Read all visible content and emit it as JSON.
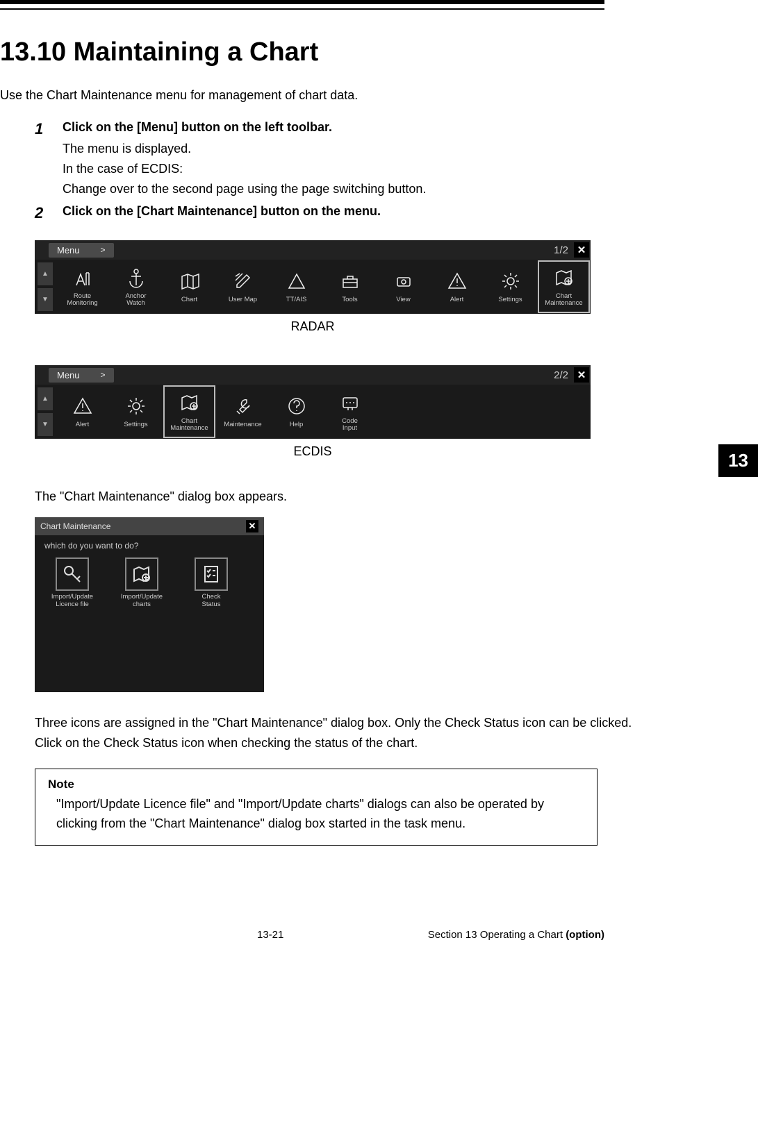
{
  "heading": "13.10 Maintaining a Chart",
  "intro": "Use the Chart Maintenance menu for management of chart data.",
  "steps": [
    {
      "num": "1",
      "title": "Click on the [Menu] button on the left toolbar.",
      "lines": [
        "The menu is displayed.",
        "In the case of ECDIS:",
        "Change over to the second page using the page switching button."
      ]
    },
    {
      "num": "2",
      "title": "Click on the [Chart Maintenance] button on the menu.",
      "lines": []
    }
  ],
  "menubar_radar": {
    "menu_label": "Menu",
    "page": "1/2",
    "items": [
      {
        "id": "route-monitoring",
        "label": "Route\nMonitoring",
        "icon": "route"
      },
      {
        "id": "anchor-watch",
        "label": "Anchor\nWatch",
        "icon": "anchor"
      },
      {
        "id": "chart",
        "label": "Chart",
        "icon": "map"
      },
      {
        "id": "user-map",
        "label": "User Map",
        "icon": "pencil"
      },
      {
        "id": "tt-ais",
        "label": "TT/AIS",
        "icon": "triangle"
      },
      {
        "id": "tools",
        "label": "Tools",
        "icon": "toolbox"
      },
      {
        "id": "view",
        "label": "View",
        "icon": "eye"
      },
      {
        "id": "alert",
        "label": "Alert",
        "icon": "alert"
      },
      {
        "id": "settings",
        "label": "Settings",
        "icon": "gear"
      },
      {
        "id": "chart-maintenance",
        "label": "Chart\nMaintenance",
        "icon": "chartmaint",
        "highlight": true
      }
    ],
    "caption": "RADAR"
  },
  "menubar_ecdis": {
    "menu_label": "Menu",
    "page": "2/2",
    "items": [
      {
        "id": "alert",
        "label": "Alert",
        "icon": "alert"
      },
      {
        "id": "settings",
        "label": "Settings",
        "icon": "gear"
      },
      {
        "id": "chart-maintenance",
        "label": "Chart\nMaintenance",
        "icon": "chartmaint",
        "highlight": true
      },
      {
        "id": "maintenance",
        "label": "Maintenance",
        "icon": "wrench"
      },
      {
        "id": "help",
        "label": "Help",
        "icon": "help"
      },
      {
        "id": "code-input",
        "label": "Code\nInput",
        "icon": "code"
      }
    ],
    "caption": "ECDIS"
  },
  "chapter_tab": "13",
  "dialog_intro": "The \"Chart Maintenance\" dialog box appears.",
  "dialog": {
    "title": "Chart Maintenance",
    "question": "which do you want to do?",
    "options": [
      {
        "id": "licence",
        "label": "Import/Update\nLicence file",
        "icon": "key"
      },
      {
        "id": "charts",
        "label": "Import/Update\ncharts",
        "icon": "chartmaint"
      },
      {
        "id": "check",
        "label": "Check\nStatus",
        "icon": "checklist"
      }
    ]
  },
  "post_dialog": [
    "Three icons are assigned in the \"Chart Maintenance\" dialog box. Only the Check Status icon can be clicked.",
    "Click on the Check Status icon when checking the status of the chart."
  ],
  "note": {
    "title": "Note",
    "body": "\"Import/Update Licence file\" and \"Import/Update charts\" dialogs can also be operated by clicking from the \"Chart Maintenance\" dialog box started in the task menu."
  },
  "footer": {
    "page": "13-21",
    "section_prefix": "Section 13   Operating a Chart ",
    "section_bold": "(option)"
  }
}
